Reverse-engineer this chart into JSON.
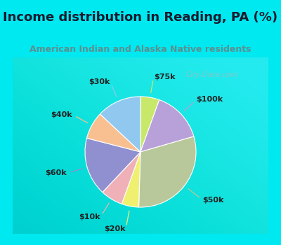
{
  "title": "Income distribution in Reading, PA (%)",
  "subtitle": "American Indian and Alaska Native residents",
  "title_color": "#1a1a2e",
  "subtitle_color": "#5a9090",
  "background_cyan": "#00e8f0",
  "background_chart": "#e0f0e8",
  "watermark": "City-Data.com",
  "labels": [
    "$75k",
    "$100k",
    "$50k",
    "$20k",
    "$10k",
    "$60k",
    "$40k",
    "$30k"
  ],
  "values": [
    5.5,
    15.0,
    30.0,
    5.0,
    6.5,
    17.0,
    8.0,
    13.0
  ],
  "colors": [
    "#c8e86a",
    "#b8a0d8",
    "#b8c89a",
    "#f0f070",
    "#f0b0b8",
    "#9090d0",
    "#f8c090",
    "#90c8f0"
  ],
  "startangle": 90,
  "figsize": [
    4.0,
    3.5
  ],
  "dpi": 100,
  "border_width": 8,
  "title_fontsize": 13,
  "subtitle_fontsize": 9,
  "label_fontsize": 8
}
